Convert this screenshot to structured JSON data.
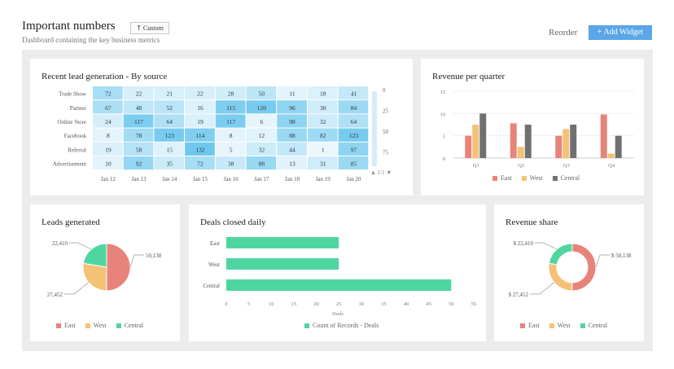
{
  "header": {
    "title": "Important numbers",
    "custom_label": "⤒ Custom",
    "subtitle": "Dashboard containing the key business metrics",
    "reorder_label": "Reorder",
    "add_widget_label": "+ Add Widget"
  },
  "colors": {
    "east": "#e8837b",
    "west": "#f5c176",
    "central": "#4fd6a0",
    "gray": "#707070",
    "accent": "#5ba6e6"
  },
  "lead_gen": {
    "title": "Recent lead generation - By source",
    "chart_data": {
      "type": "heatmap",
      "rows": [
        "Trade Show",
        "Partner",
        "Online Store",
        "Facebook",
        "Referral",
        "Advertisement"
      ],
      "columns": [
        "Jan 12",
        "Jan 13",
        "Jan 14",
        "Jan 15",
        "Jan 16",
        "Jan 17",
        "Jan 18",
        "Jan 19",
        "Jan 20"
      ],
      "values": [
        [
          72,
          22,
          21,
          22,
          28,
          50,
          11,
          18,
          41
        ],
        [
          67,
          48,
          52,
          16,
          115,
          120,
          96,
          30,
          84
        ],
        [
          24,
          117,
          64,
          19,
          117,
          6,
          98,
          32,
          64
        ],
        [
          8,
          78,
          123,
          114,
          8,
          12,
          88,
          82,
          123
        ],
        [
          19,
          58,
          15,
          132,
          5,
          32,
          44,
          1,
          97
        ],
        [
          10,
          92,
          35,
          72,
          38,
          88,
          13,
          31,
          85
        ]
      ],
      "scale_ticks": [
        "0",
        "25",
        "50",
        "75"
      ],
      "pager": "1/1"
    }
  },
  "revenue_quarter": {
    "title": "Revenue per quarter",
    "chart_data": {
      "type": "bar",
      "categories": [
        "Q1",
        "Q2",
        "Q3",
        "Q4"
      ],
      "series": [
        {
          "name": "East",
          "values": [
            5,
            7.8,
            5,
            9.8
          ]
        },
        {
          "name": "West",
          "values": [
            7.5,
            2.5,
            6.5,
            1
          ]
        },
        {
          "name": "Central",
          "values": [
            10,
            7.5,
            7.5,
            5
          ]
        }
      ],
      "ylim": [
        0,
        15
      ],
      "yticks": [
        "0",
        "5",
        "10",
        "15"
      ]
    }
  },
  "leads_generated": {
    "title": "Leads generated",
    "chart_data": {
      "type": "pie",
      "labels": [
        "East",
        "West",
        "Central"
      ],
      "values": [
        50138,
        27452,
        22410
      ],
      "value_labels": [
        "50,138",
        "27,452",
        "22,410"
      ]
    }
  },
  "deals_closed": {
    "title": "Deals closed daily",
    "chart_data": {
      "type": "bar",
      "orientation": "horizontal",
      "categories": [
        "East",
        "West",
        "Central"
      ],
      "values": [
        25,
        25,
        50
      ],
      "xlim": [
        0,
        55
      ],
      "xticks": [
        "0",
        "5",
        "10",
        "15",
        "20",
        "25",
        "30",
        "35",
        "40",
        "45",
        "50",
        "55"
      ],
      "xlabel": "Deals",
      "series_name": "Count of Records - Deals"
    }
  },
  "revenue_share": {
    "title": "Revenue share",
    "chart_data": {
      "type": "pie",
      "donut": true,
      "labels": [
        "East",
        "West",
        "Central"
      ],
      "values": [
        50138,
        27452,
        22410
      ],
      "value_labels": [
        "$ 50,138",
        "$ 27,452",
        "$ 22,410"
      ]
    }
  }
}
